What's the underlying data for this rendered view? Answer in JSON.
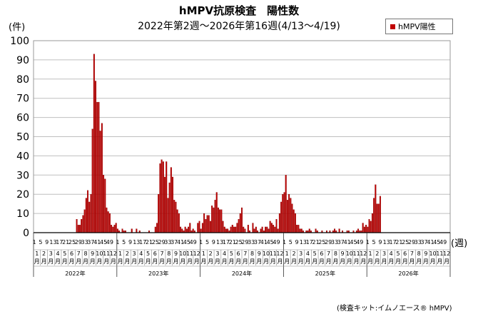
{
  "header": {
    "title": "hMPV抗原検査　陽性数",
    "subtitle": "2022年第2週～2026年第16週(4/13～4/19)"
  },
  "axis": {
    "y_unit": "(件)",
    "x_unit": "(週)"
  },
  "legend": {
    "label": "hMPV陽性"
  },
  "footer": {
    "source": "(検査キット:イムノエース® hMPV)"
  },
  "colors": {
    "bar": "#c00000",
    "bar_edge": "#7a0000",
    "grid": "#bfbfbf",
    "axis": "#000000"
  },
  "chart_data": {
    "type": "bar",
    "title": "hMPV抗原検査　陽性数",
    "ylabel": "(件)",
    "xlabel": "(週)",
    "ylim": [
      0,
      100
    ],
    "yticks": [
      0,
      10,
      20,
      30,
      40,
      50,
      60,
      70,
      80,
      90,
      100
    ],
    "grid": true,
    "legend_position": "top-right",
    "weeks_per_year": 53,
    "total_weeks": 265,
    "start": {
      "year": 2022,
      "week": 1
    },
    "series": [
      {
        "name": "hMPV陽性",
        "points": [
          {
            "i": 27,
            "v": 7
          },
          {
            "i": 28,
            "v": 4
          },
          {
            "i": 29,
            "v": 4
          },
          {
            "i": 30,
            "v": 7
          },
          {
            "i": 31,
            "v": 9
          },
          {
            "i": 32,
            "v": 12
          },
          {
            "i": 33,
            "v": 18
          },
          {
            "i": 34,
            "v": 22
          },
          {
            "i": 35,
            "v": 16
          },
          {
            "i": 36,
            "v": 20
          },
          {
            "i": 37,
            "v": 54
          },
          {
            "i": 38,
            "v": 93
          },
          {
            "i": 39,
            "v": 79
          },
          {
            "i": 40,
            "v": 68
          },
          {
            "i": 41,
            "v": 68
          },
          {
            "i": 42,
            "v": 53
          },
          {
            "i": 43,
            "v": 57
          },
          {
            "i": 44,
            "v": 30
          },
          {
            "i": 45,
            "v": 28
          },
          {
            "i": 46,
            "v": 13
          },
          {
            "i": 47,
            "v": 11
          },
          {
            "i": 48,
            "v": 10
          },
          {
            "i": 49,
            "v": 4
          },
          {
            "i": 50,
            "v": 3
          },
          {
            "i": 51,
            "v": 4
          },
          {
            "i": 52,
            "v": 5
          },
          {
            "i": 53,
            "v": 2
          },
          {
            "i": 54,
            "v": 1
          },
          {
            "i": 56,
            "v": 2
          },
          {
            "i": 57,
            "v": 1
          },
          {
            "i": 58,
            "v": 1
          },
          {
            "i": 62,
            "v": 2
          },
          {
            "i": 65,
            "v": 2
          },
          {
            "i": 67,
            "v": 1
          },
          {
            "i": 73,
            "v": 1
          },
          {
            "i": 77,
            "v": 3
          },
          {
            "i": 78,
            "v": 5
          },
          {
            "i": 79,
            "v": 20
          },
          {
            "i": 80,
            "v": 36
          },
          {
            "i": 81,
            "v": 38
          },
          {
            "i": 82,
            "v": 37
          },
          {
            "i": 83,
            "v": 29
          },
          {
            "i": 84,
            "v": 37
          },
          {
            "i": 85,
            "v": 18
          },
          {
            "i": 86,
            "v": 26
          },
          {
            "i": 87,
            "v": 34
          },
          {
            "i": 88,
            "v": 29
          },
          {
            "i": 89,
            "v": 17
          },
          {
            "i": 90,
            "v": 16
          },
          {
            "i": 91,
            "v": 12
          },
          {
            "i": 92,
            "v": 10
          },
          {
            "i": 93,
            "v": 3
          },
          {
            "i": 94,
            "v": 2
          },
          {
            "i": 95,
            "v": 1
          },
          {
            "i": 96,
            "v": 3
          },
          {
            "i": 97,
            "v": 2
          },
          {
            "i": 98,
            "v": 3
          },
          {
            "i": 99,
            "v": 5
          },
          {
            "i": 100,
            "v": 1
          },
          {
            "i": 101,
            "v": 2
          },
          {
            "i": 102,
            "v": 1
          },
          {
            "i": 104,
            "v": 5
          },
          {
            "i": 105,
            "v": 6
          },
          {
            "i": 106,
            "v": 2
          },
          {
            "i": 107,
            "v": 5
          },
          {
            "i": 108,
            "v": 10
          },
          {
            "i": 109,
            "v": 7
          },
          {
            "i": 110,
            "v": 9
          },
          {
            "i": 111,
            "v": 9
          },
          {
            "i": 112,
            "v": 6
          },
          {
            "i": 113,
            "v": 14
          },
          {
            "i": 114,
            "v": 13
          },
          {
            "i": 115,
            "v": 17
          },
          {
            "i": 116,
            "v": 21
          },
          {
            "i": 117,
            "v": 13
          },
          {
            "i": 118,
            "v": 12
          },
          {
            "i": 119,
            "v": 12
          },
          {
            "i": 120,
            "v": 6
          },
          {
            "i": 121,
            "v": 3
          },
          {
            "i": 122,
            "v": 2
          },
          {
            "i": 123,
            "v": 2
          },
          {
            "i": 124,
            "v": 1
          },
          {
            "i": 125,
            "v": 3
          },
          {
            "i": 126,
            "v": 4
          },
          {
            "i": 127,
            "v": 3
          },
          {
            "i": 128,
            "v": 3
          },
          {
            "i": 129,
            "v": 5
          },
          {
            "i": 130,
            "v": 7
          },
          {
            "i": 131,
            "v": 10
          },
          {
            "i": 132,
            "v": 13
          },
          {
            "i": 133,
            "v": 3
          },
          {
            "i": 134,
            "v": 2
          },
          {
            "i": 136,
            "v": 4
          },
          {
            "i": 137,
            "v": 1
          },
          {
            "i": 139,
            "v": 5
          },
          {
            "i": 140,
            "v": 2
          },
          {
            "i": 141,
            "v": 3
          },
          {
            "i": 142,
            "v": 1
          },
          {
            "i": 144,
            "v": 2
          },
          {
            "i": 145,
            "v": 3
          },
          {
            "i": 146,
            "v": 1
          },
          {
            "i": 147,
            "v": 3
          },
          {
            "i": 148,
            "v": 3
          },
          {
            "i": 149,
            "v": 2
          },
          {
            "i": 150,
            "v": 6
          },
          {
            "i": 151,
            "v": 5
          },
          {
            "i": 152,
            "v": 4
          },
          {
            "i": 153,
            "v": 3
          },
          {
            "i": 154,
            "v": 7
          },
          {
            "i": 155,
            "v": 2
          },
          {
            "i": 156,
            "v": 10
          },
          {
            "i": 157,
            "v": 16
          },
          {
            "i": 158,
            "v": 20
          },
          {
            "i": 159,
            "v": 21
          },
          {
            "i": 160,
            "v": 30
          },
          {
            "i": 161,
            "v": 17
          },
          {
            "i": 162,
            "v": 20
          },
          {
            "i": 163,
            "v": 18
          },
          {
            "i": 164,
            "v": 15
          },
          {
            "i": 165,
            "v": 12
          },
          {
            "i": 166,
            "v": 10
          },
          {
            "i": 167,
            "v": 4
          },
          {
            "i": 168,
            "v": 4
          },
          {
            "i": 169,
            "v": 2
          },
          {
            "i": 170,
            "v": 2
          },
          {
            "i": 171,
            "v": 1
          },
          {
            "i": 173,
            "v": 1
          },
          {
            "i": 174,
            "v": 1
          },
          {
            "i": 175,
            "v": 2
          },
          {
            "i": 176,
            "v": 1
          },
          {
            "i": 179,
            "v": 2
          },
          {
            "i": 180,
            "v": 1
          },
          {
            "i": 183,
            "v": 1
          },
          {
            "i": 186,
            "v": 1
          },
          {
            "i": 188,
            "v": 1
          },
          {
            "i": 190,
            "v": 1
          },
          {
            "i": 191,
            "v": 2
          },
          {
            "i": 192,
            "v": 1
          },
          {
            "i": 194,
            "v": 2
          },
          {
            "i": 196,
            "v": 1
          },
          {
            "i": 199,
            "v": 1
          },
          {
            "i": 200,
            "v": 1
          },
          {
            "i": 203,
            "v": 1
          },
          {
            "i": 205,
            "v": 1
          },
          {
            "i": 206,
            "v": 2
          },
          {
            "i": 207,
            "v": 1
          },
          {
            "i": 208,
            "v": 1
          },
          {
            "i": 209,
            "v": 5
          },
          {
            "i": 210,
            "v": 3
          },
          {
            "i": 211,
            "v": 4
          },
          {
            "i": 212,
            "v": 3
          },
          {
            "i": 213,
            "v": 7
          },
          {
            "i": 214,
            "v": 6
          },
          {
            "i": 215,
            "v": 10
          },
          {
            "i": 216,
            "v": 18
          },
          {
            "i": 217,
            "v": 25
          },
          {
            "i": 218,
            "v": 15
          },
          {
            "i": 219,
            "v": 15
          },
          {
            "i": 220,
            "v": 19
          }
        ]
      }
    ],
    "x_tick_weeks": [
      "1",
      "5",
      "9",
      "13",
      "17",
      "21",
      "25",
      "29",
      "33",
      "37",
      "41",
      "45",
      "49"
    ],
    "x_month_labels": [
      "1",
      "2",
      "3",
      "4",
      "5",
      "6",
      "7",
      "8",
      "9",
      "10",
      "11",
      "12"
    ],
    "x_month_suffix": "月",
    "x_year_labels": [
      "2022年",
      "2023年",
      "2024年",
      "2025年",
      "2026年"
    ]
  }
}
